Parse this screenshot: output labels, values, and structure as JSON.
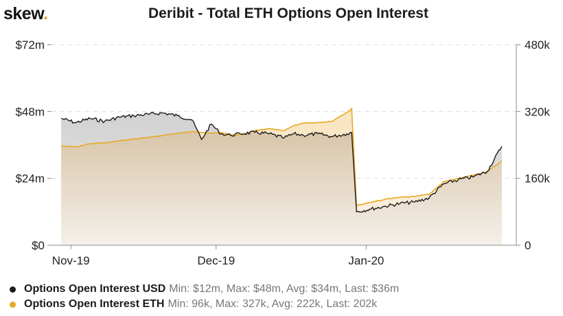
{
  "brand": {
    "name": "skew",
    "dot": "."
  },
  "chart_data": {
    "type": "area",
    "title": "Deribit - Total ETH Options Open Interest",
    "x_ticks": [
      "Nov-19",
      "Dec-19",
      "Jan-20"
    ],
    "y_left": {
      "ticks": [
        "$0",
        "$24m",
        "$48m",
        "$72m"
      ],
      "range": [
        0,
        72
      ],
      "unit": "USD millions"
    },
    "y_right": {
      "ticks": [
        "0",
        "160k",
        "320k",
        "480k"
      ],
      "range": [
        0,
        480
      ],
      "unit": "ETH thousands"
    },
    "grid": true,
    "legend_position": "bottom-left",
    "series": [
      {
        "name": "Options Open Interest USD",
        "axis": "left",
        "color": "#1a1a1a",
        "stats": "Min: $12m, Max: $48m, Avg: $34m, Last: $36m",
        "x": [
          "2019-10-30",
          "2019-11-02",
          "2019-11-05",
          "2019-11-08",
          "2019-11-11",
          "2019-11-14",
          "2019-11-17",
          "2019-11-20",
          "2019-11-23",
          "2019-11-26",
          "2019-11-28",
          "2019-11-30",
          "2019-12-02",
          "2019-12-04",
          "2019-12-06",
          "2019-12-09",
          "2019-12-12",
          "2019-12-15",
          "2019-12-17",
          "2019-12-19",
          "2019-12-22",
          "2019-12-25",
          "2019-12-28",
          "2019-12-29",
          "2019-12-30",
          "2020-01-02",
          "2020-01-05",
          "2020-01-08",
          "2020-01-11",
          "2020-01-14",
          "2020-01-17",
          "2020-01-20",
          "2020-01-23",
          "2020-01-26",
          "2020-01-29"
        ],
        "values": [
          45.5,
          44,
          45.5,
          44.5,
          46,
          46.5,
          47,
          47.5,
          46.5,
          45,
          38,
          43.5,
          40,
          39.5,
          40,
          40.5,
          40,
          38.5,
          40,
          39.5,
          40,
          39,
          40,
          40.5,
          12,
          13,
          14,
          15,
          15.5,
          17,
          22,
          23.5,
          24.5,
          26.5,
          35.5
        ]
      },
      {
        "name": "Options Open Interest ETH",
        "axis": "right",
        "color": "#e8a825",
        "stats": "Min: 96k, Max: 327k, Avg: 222k, Last: 202k",
        "x": [
          "2019-10-30",
          "2019-11-02",
          "2019-11-05",
          "2019-11-08",
          "2019-11-11",
          "2019-11-14",
          "2019-11-17",
          "2019-11-20",
          "2019-11-23",
          "2019-11-26",
          "2019-11-28",
          "2019-11-30",
          "2019-12-02",
          "2019-12-04",
          "2019-12-06",
          "2019-12-09",
          "2019-12-12",
          "2019-12-15",
          "2019-12-17",
          "2019-12-19",
          "2019-12-22",
          "2019-12-25",
          "2019-12-28",
          "2019-12-29",
          "2019-12-30",
          "2020-01-02",
          "2020-01-05",
          "2020-01-08",
          "2020-01-11",
          "2020-01-14",
          "2020-01-17",
          "2020-01-20",
          "2020-01-23",
          "2020-01-26",
          "2020-01-29"
        ],
        "values": [
          238,
          235,
          243,
          245,
          250,
          254,
          258,
          263,
          268,
          272,
          270,
          268,
          270,
          264,
          265,
          274,
          279,
          274,
          286,
          292,
          293,
          297,
          318,
          327,
          95,
          103,
          110,
          115,
          117,
          122,
          152,
          160,
          167,
          176,
          202
        ]
      }
    ]
  }
}
